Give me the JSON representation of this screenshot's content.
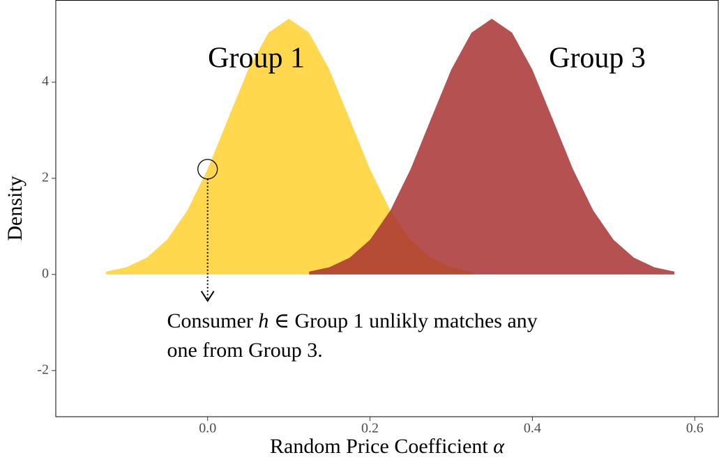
{
  "chart_data": {
    "type": "area",
    "xlabel": [
      "Random Price Coefficient ",
      "α"
    ],
    "ylabel": "Density",
    "series": [
      {
        "name": "Group 1",
        "color": "#FFD84D",
        "x": [
          -0.125,
          -0.1,
          -0.075,
          -0.05,
          -0.025,
          0,
          0.025,
          0.05,
          0.075,
          0.1,
          0.125,
          0.15,
          0.175,
          0.2,
          0.225,
          0.25,
          0.275,
          0.3,
          0.325
        ],
        "values": [
          0.06,
          0.15,
          0.35,
          0.72,
          1.33,
          2.19,
          3.23,
          4.26,
          5.03,
          5.32,
          5.03,
          4.26,
          3.23,
          2.19,
          1.33,
          0.72,
          0.35,
          0.15,
          0.06
        ],
        "label_pos": [
          0.06,
          4.45
        ]
      },
      {
        "name": "Group 3",
        "color": "#A93232",
        "x": [
          0.125,
          0.15,
          0.175,
          0.2,
          0.225,
          0.25,
          0.275,
          0.3,
          0.325,
          0.35,
          0.375,
          0.4,
          0.425,
          0.45,
          0.475,
          0.5,
          0.525,
          0.55,
          0.575
        ],
        "values": [
          0.06,
          0.15,
          0.35,
          0.72,
          1.33,
          2.19,
          3.23,
          4.26,
          5.03,
          5.32,
          5.03,
          4.26,
          3.23,
          2.19,
          1.33,
          0.72,
          0.35,
          0.15,
          0.06
        ],
        "label_pos": [
          0.48,
          4.45
        ]
      }
    ],
    "highlight": {
      "x": 0,
      "y": 2.19,
      "y_end": -0.55
    },
    "annotation": {
      "lines": [
        [
          "Consumer ",
          "h",
          " ∈ Group 1 unlikly matches any"
        ],
        [
          "one from Group 3."
        ]
      ],
      "pos": [
        -0.05,
        -1.0
      ]
    },
    "xlim": [
      -0.187,
      0.629
    ],
    "ylim": [
      -2.96,
      5.71
    ],
    "xticks": [
      {
        "value": 0,
        "label": "0.0"
      },
      0.2,
      0.4,
      0.6
    ],
    "yticks": [
      -2,
      0,
      2,
      4
    ]
  }
}
